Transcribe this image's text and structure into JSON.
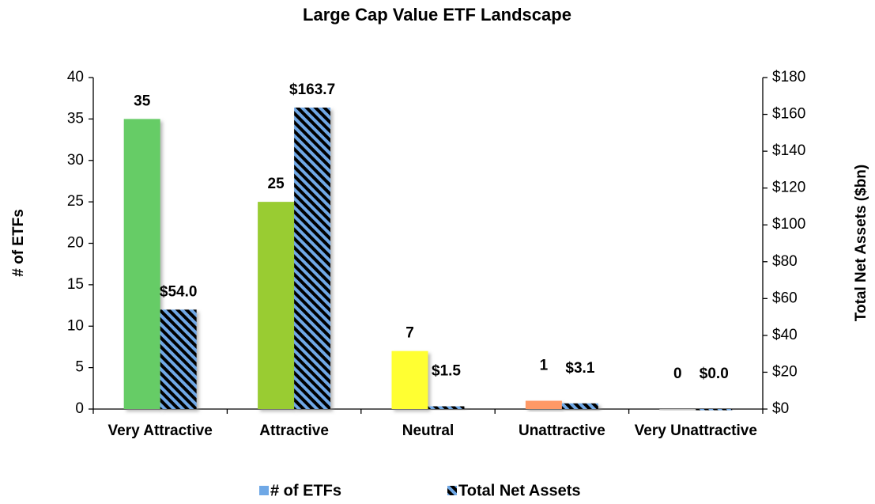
{
  "chart_data": {
    "type": "bar",
    "title": "Large Cap Value ETF Landscape",
    "categories": [
      "Very Attractive",
      "Attractive",
      "Neutral",
      "Unattractive",
      "Very Unattractive"
    ],
    "series": [
      {
        "name": "# of ETFs",
        "color": "#6fa8e6",
        "colors": [
          "#66cc66",
          "#99cc33",
          "#ffff33",
          "#ff9966",
          "#c0c0c0"
        ],
        "values": [
          35,
          25,
          7,
          1,
          0
        ]
      },
      {
        "name": "Total Net Assets",
        "color": "#6fa8e6",
        "hatch": "#000000",
        "axis": "y2",
        "values": [
          54.0,
          163.7,
          1.5,
          3.1,
          0.0
        ],
        "value_labels": [
          "$54.0",
          "$163.7",
          "$1.5",
          "$3.1",
          "$0.0"
        ]
      }
    ],
    "ylabel": "# of ETFs",
    "y2label": "Total Net Assets ($bn)",
    "ylim": [
      0,
      40
    ],
    "yticks": [
      0,
      5,
      10,
      15,
      20,
      25,
      30,
      35,
      40
    ],
    "y2lim": [
      0,
      180
    ],
    "y2ticks": [
      {
        "value": 0,
        "label": "$0"
      },
      {
        "value": 20,
        "label": "$20"
      },
      {
        "value": 40,
        "label": "$40"
      },
      {
        "value": 60,
        "label": "$60"
      },
      {
        "value": 80,
        "label": "$80"
      },
      {
        "value": 100,
        "label": "$100"
      },
      {
        "value": 120,
        "label": "$120"
      },
      {
        "value": 140,
        "label": "$140"
      },
      {
        "value": 160,
        "label": "$160"
      },
      {
        "value": 180,
        "label": "$180"
      }
    ],
    "grid": false,
    "legend": "bottom"
  }
}
